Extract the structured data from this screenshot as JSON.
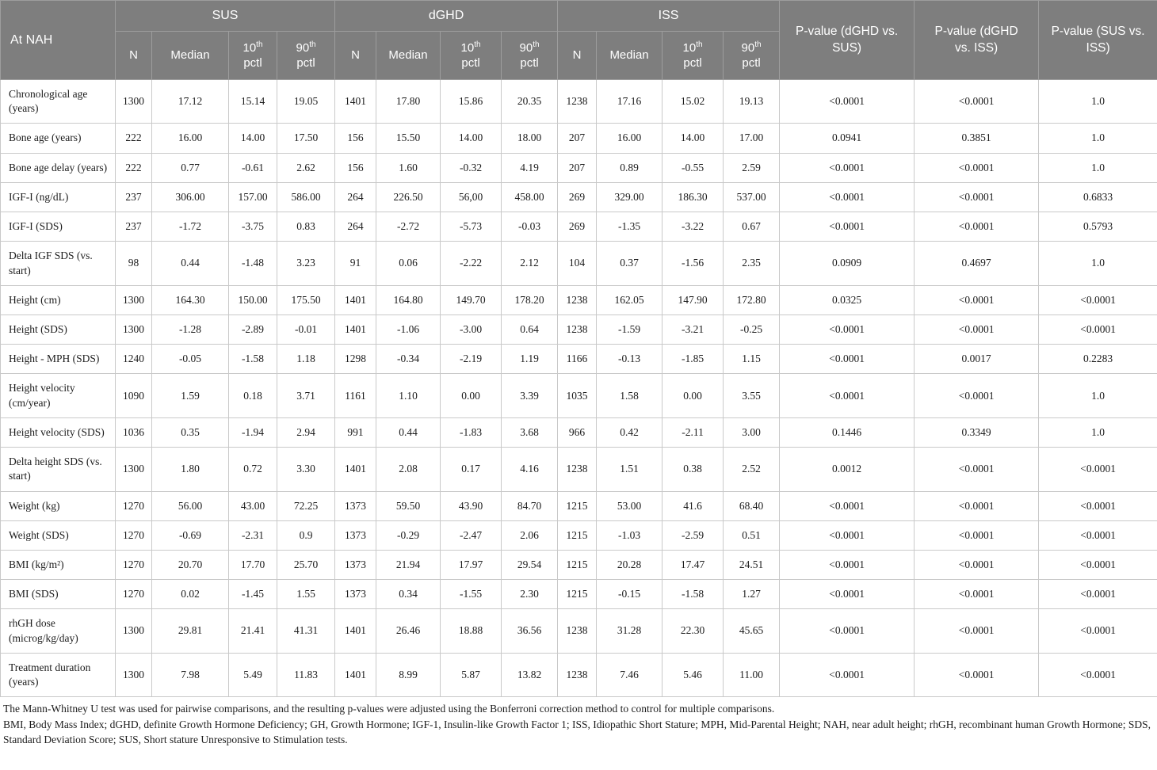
{
  "table": {
    "corner_label": "At NAH",
    "groups": [
      "SUS",
      "dGHD",
      "ISS"
    ],
    "sub": {
      "n": "N",
      "median": "Median",
      "p10": "10",
      "p90": "90",
      "sup": "th",
      "pctl": "pctl"
    },
    "p_headers": [
      "P-value (dGHD vs. SUS)",
      "P-value (dGHD vs. ISS)",
      "P-value (SUS vs. ISS)"
    ],
    "rows": [
      {
        "label": "Chronological age (years)",
        "values": [
          "1300",
          "17.12",
          "15.14",
          "19.05",
          "1401",
          "17.80",
          "15.86",
          "20.35",
          "1238",
          "17.16",
          "15.02",
          "19.13",
          "<0.0001",
          "<0.0001",
          "1.0"
        ]
      },
      {
        "label": "Bone age (years)",
        "values": [
          "222",
          "16.00",
          "14.00",
          "17.50",
          "156",
          "15.50",
          "14.00",
          "18.00",
          "207",
          "16.00",
          "14.00",
          "17.00",
          "0.0941",
          "0.3851",
          "1.0"
        ]
      },
      {
        "label": "Bone age delay (years)",
        "values": [
          "222",
          "0.77",
          "-0.61",
          "2.62",
          "156",
          "1.60",
          "-0.32",
          "4.19",
          "207",
          "0.89",
          "-0.55",
          "2.59",
          "<0.0001",
          "<0.0001",
          "1.0"
        ]
      },
      {
        "label": "IGF-I (ng/dL)",
        "values": [
          "237",
          "306.00",
          "157.00",
          "586.00",
          "264",
          "226.50",
          "56,00",
          "458.00",
          "269",
          "329.00",
          "186.30",
          "537.00",
          "<0.0001",
          "<0.0001",
          "0.6833"
        ]
      },
      {
        "label": "IGF-I (SDS)",
        "values": [
          "237",
          "-1.72",
          "-3.75",
          "0.83",
          "264",
          "-2.72",
          "-5.73",
          "-0.03",
          "269",
          "-1.35",
          "-3.22",
          "0.67",
          "<0.0001",
          "<0.0001",
          "0.5793"
        ]
      },
      {
        "label": "Delta IGF SDS (vs. start)",
        "values": [
          "98",
          "0.44",
          "-1.48",
          "3.23",
          "91",
          "0.06",
          "-2.22",
          "2.12",
          "104",
          "0.37",
          "-1.56",
          "2.35",
          "0.0909",
          "0.4697",
          "1.0"
        ]
      },
      {
        "label": "Height (cm)",
        "values": [
          "1300",
          "164.30",
          "150.00",
          "175.50",
          "1401",
          "164.80",
          "149.70",
          "178.20",
          "1238",
          "162.05",
          "147.90",
          "172.80",
          "0.0325",
          "<0.0001",
          "<0.0001"
        ]
      },
      {
        "label": "Height (SDS)",
        "values": [
          "1300",
          "-1.28",
          "-2.89",
          "-0.01",
          "1401",
          "-1.06",
          "-3.00",
          "0.64",
          "1238",
          "-1.59",
          "-3.21",
          "-0.25",
          "<0.0001",
          "<0.0001",
          "<0.0001"
        ]
      },
      {
        "label": "Height - MPH (SDS)",
        "values": [
          "1240",
          "-0.05",
          "-1.58",
          "1.18",
          "1298",
          "-0.34",
          "-2.19",
          "1.19",
          "1166",
          "-0.13",
          "-1.85",
          "1.15",
          "<0.0001",
          "0.0017",
          "0.2283"
        ]
      },
      {
        "label": "Height velocity (cm/year)",
        "values": [
          "1090",
          "1.59",
          "0.18",
          "3.71",
          "1161",
          "1.10",
          "0.00",
          "3.39",
          "1035",
          "1.58",
          "0.00",
          "3.55",
          "<0.0001",
          "<0.0001",
          "1.0"
        ]
      },
      {
        "label": "Height velocity (SDS)",
        "values": [
          "1036",
          "0.35",
          "-1.94",
          "2.94",
          "991",
          "0.44",
          "-1.83",
          "3.68",
          "966",
          "0.42",
          "-2.11",
          "3.00",
          "0.1446",
          "0.3349",
          "1.0"
        ]
      },
      {
        "label": "Delta height SDS (vs. start)",
        "values": [
          "1300",
          "1.80",
          "0.72",
          "3.30",
          "1401",
          "2.08",
          "0.17",
          "4.16",
          "1238",
          "1.51",
          "0.38",
          "2.52",
          "0.0012",
          "<0.0001",
          "<0.0001"
        ]
      },
      {
        "label": "Weight (kg)",
        "values": [
          "1270",
          "56.00",
          "43.00",
          "72.25",
          "1373",
          "59.50",
          "43.90",
          "84.70",
          "1215",
          "53.00",
          "41.6",
          "68.40",
          "<0.0001",
          "<0.0001",
          "<0.0001"
        ]
      },
      {
        "label": "Weight (SDS)",
        "values": [
          "1270",
          "-0.69",
          "-2.31",
          "0.9",
          "1373",
          "-0.29",
          "-2.47",
          "2.06",
          "1215",
          "-1.03",
          "-2.59",
          "0.51",
          "<0.0001",
          "<0.0001",
          "<0.0001"
        ]
      },
      {
        "label": "BMI (kg/m²)",
        "values": [
          "1270",
          "20.70",
          "17.70",
          "25.70",
          "1373",
          "21.94",
          "17.97",
          "29.54",
          "1215",
          "20.28",
          "17.47",
          "24.51",
          "<0.0001",
          "<0.0001",
          "<0.0001"
        ]
      },
      {
        "label": "BMI (SDS)",
        "values": [
          "1270",
          "0.02",
          "-1.45",
          "1.55",
          "1373",
          "0.34",
          "-1.55",
          "2.30",
          "1215",
          "-0.15",
          "-1.58",
          "1.27",
          "<0.0001",
          "<0.0001",
          "<0.0001"
        ]
      },
      {
        "label": "rhGH dose (microg/kg/day)",
        "values": [
          "1300",
          "29.81",
          "21.41",
          "41.31",
          "1401",
          "26.46",
          "18.88",
          "36.56",
          "1238",
          "31.28",
          "22.30",
          "45.65",
          "<0.0001",
          "<0.0001",
          "<0.0001"
        ]
      },
      {
        "label": "Treatment duration (years)",
        "values": [
          "1300",
          "7.98",
          "5.49",
          "11.83",
          "1401",
          "8.99",
          "5.87",
          "13.82",
          "1238",
          "7.46",
          "5.46",
          "11.00",
          "<0.0001",
          "<0.0001",
          "<0.0001"
        ]
      }
    ]
  },
  "footnotes": {
    "line1": "The Mann-Whitney U test was used for pairwise comparisons, and the resulting p-values were adjusted using the Bonferroni correction method to control for multiple comparisons.",
    "line2": "BMI, Body Mass Index; dGHD, definite Growth Hormone Deficiency; GH, Growth Hormone; IGF-1, Insulin-like Growth Factor 1; ISS, Idiopathic Short Stature; MPH, Mid-Parental Height; NAH, near adult height; rhGH, recombinant human Growth Hormone; SDS, Standard Deviation Score; SUS, Short stature Unresponsive to Stimulation tests."
  },
  "colors": {
    "header_bg": "#7e7e7e",
    "header_text": "#ffffff",
    "body_border": "#c9c9c9",
    "header_border": "#9d9d9d",
    "text": "#1c1c1c"
  }
}
